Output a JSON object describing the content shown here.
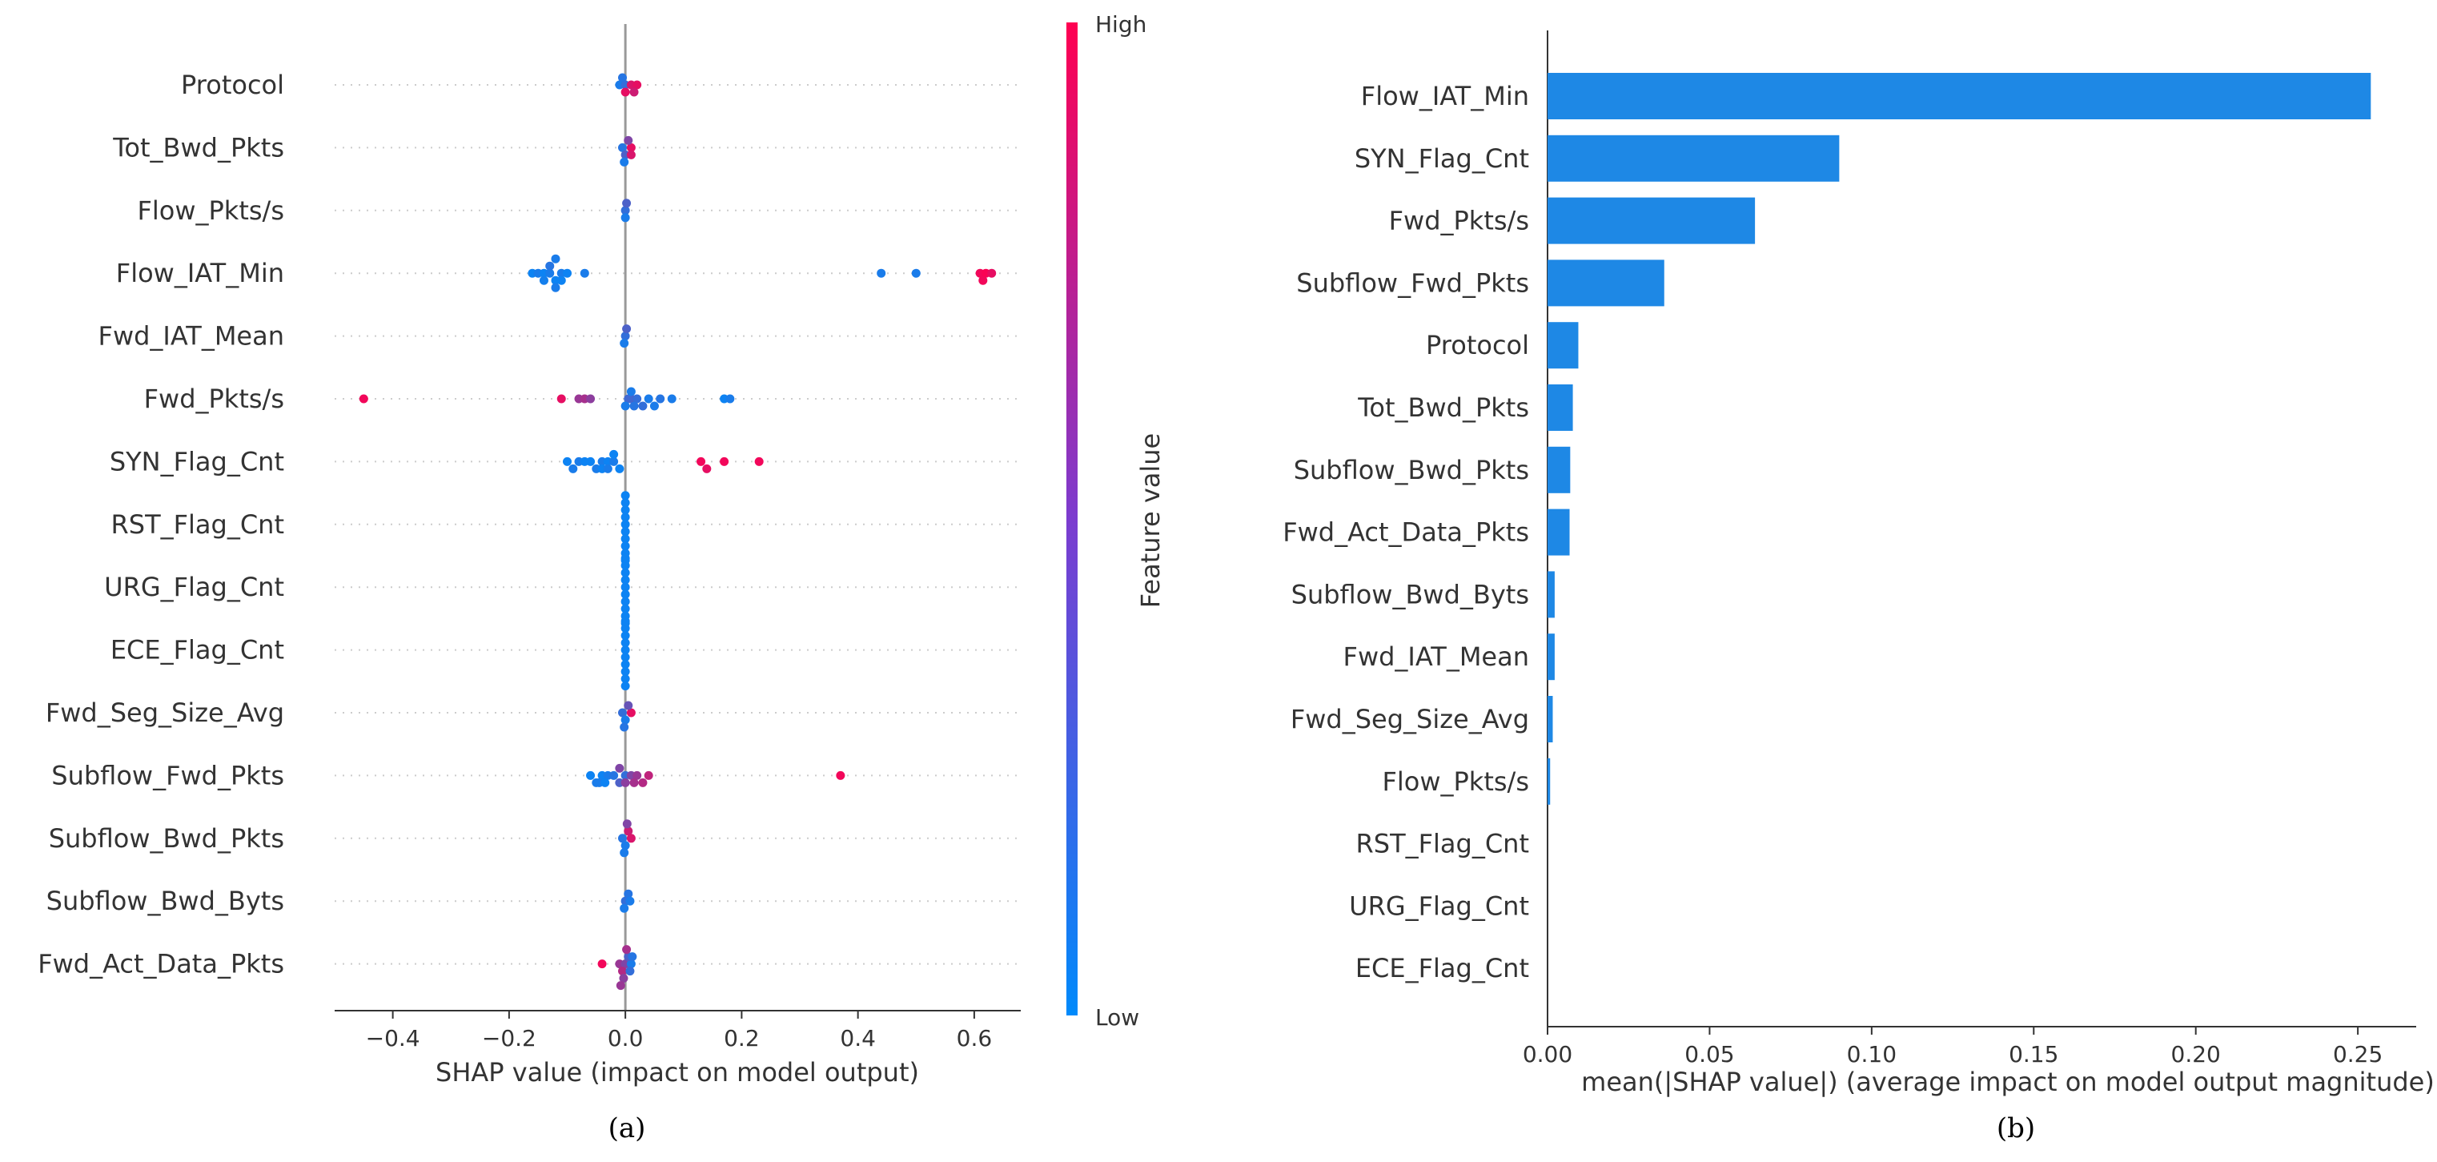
{
  "colors": {
    "low": "#008afb",
    "high": "#ff0051",
    "bar": "#1e88e5",
    "axis": "#333333",
    "grid": "#cccccc",
    "zero_line": "#999999"
  },
  "chart_data": [
    {
      "type": "scatter",
      "subtype": "shap-beeswarm",
      "caption": "(a)",
      "xlabel": "SHAP value (impact on model output)",
      "xticks": [
        -0.4,
        -0.2,
        0.0,
        0.2,
        0.4,
        0.6
      ],
      "xtick_labels": [
        "−0.4",
        "−0.2",
        "0.0",
        "0.2",
        "0.4",
        "0.6"
      ],
      "xlim": [
        -0.5,
        0.68
      ],
      "colorbar": {
        "title": "Feature value",
        "high_label": "High",
        "low_label": "Low"
      },
      "features": [
        {
          "name": "Protocol",
          "points": [
            [
              -0.01,
              0.1
            ],
            [
              0.0,
              0.2
            ],
            [
              0.01,
              0.85
            ],
            [
              0.02,
              0.9
            ],
            [
              0.0,
              0.9
            ],
            [
              -0.005,
              0.15
            ],
            [
              0.015,
              0.8
            ]
          ]
        },
        {
          "name": "Tot_Bwd_Pkts",
          "points": [
            [
              -0.005,
              0.15
            ],
            [
              0.0,
              0.3
            ],
            [
              0.01,
              0.9
            ],
            [
              0.005,
              0.5
            ],
            [
              0.01,
              0.85
            ],
            [
              -0.002,
              0.1
            ]
          ]
        },
        {
          "name": "Flow_Pkts/s",
          "points": [
            [
              0.0,
              0.2
            ],
            [
              0.0,
              0.1
            ],
            [
              0.002,
              0.3
            ]
          ]
        },
        {
          "name": "Flow_IAT_Min",
          "points": [
            [
              -0.16,
              0.05
            ],
            [
              -0.15,
              0.1
            ],
            [
              -0.14,
              0.05
            ],
            [
              -0.13,
              0.1
            ],
            [
              -0.12,
              0.05
            ],
            [
              -0.11,
              0.1
            ],
            [
              -0.1,
              0.05
            ],
            [
              -0.13,
              0.15
            ],
            [
              -0.12,
              0.1
            ],
            [
              -0.11,
              0.05
            ],
            [
              -0.07,
              0.1
            ],
            [
              -0.12,
              0.1
            ],
            [
              -0.14,
              0.08
            ],
            [
              0.44,
              0.1
            ],
            [
              0.5,
              0.1
            ],
            [
              0.61,
              0.95
            ],
            [
              0.62,
              0.98
            ],
            [
              0.63,
              0.9
            ],
            [
              0.615,
              0.95
            ]
          ]
        },
        {
          "name": "Fwd_IAT_Mean",
          "points": [
            [
              0.0,
              0.2
            ],
            [
              -0.002,
              0.1
            ],
            [
              0.002,
              0.3
            ]
          ]
        },
        {
          "name": "Fwd_Pkts/s",
          "points": [
            [
              -0.45,
              0.95
            ],
            [
              -0.11,
              0.9
            ],
            [
              -0.08,
              0.6
            ],
            [
              -0.07,
              0.65
            ],
            [
              -0.06,
              0.55
            ],
            [
              0.01,
              0.3
            ],
            [
              0.02,
              0.2
            ],
            [
              0.04,
              0.1
            ],
            [
              0.06,
              0.15
            ],
            [
              0.08,
              0.1
            ],
            [
              0.17,
              0.05
            ],
            [
              0.18,
              0.1
            ],
            [
              0.005,
              0.25
            ],
            [
              0.015,
              0.15
            ],
            [
              0.0,
              0.1
            ],
            [
              0.01,
              0.1
            ],
            [
              0.03,
              0.2
            ],
            [
              0.05,
              0.1
            ]
          ]
        },
        {
          "name": "SYN_Flag_Cnt",
          "points": [
            [
              -0.1,
              0.05
            ],
            [
              -0.08,
              0.1
            ],
            [
              -0.06,
              0.05
            ],
            [
              -0.04,
              0.1
            ],
            [
              -0.03,
              0.05
            ],
            [
              -0.02,
              0.1
            ],
            [
              -0.01,
              0.05
            ],
            [
              -0.05,
              0.1
            ],
            [
              -0.04,
              0.05
            ],
            [
              -0.03,
              0.1
            ],
            [
              -0.02,
              0.05
            ],
            [
              -0.09,
              0.1
            ],
            [
              -0.07,
              0.05
            ],
            [
              0.13,
              0.95
            ],
            [
              0.14,
              0.9
            ],
            [
              0.17,
              0.95
            ],
            [
              0.23,
              0.95
            ]
          ]
        },
        {
          "name": "RST_Flag_Cnt",
          "points": [
            [
              0.0,
              0.05
            ],
            [
              0.0,
              0.05
            ],
            [
              0.0,
              0.05
            ],
            [
              0.0,
              0.05
            ],
            [
              0.0,
              0.05
            ],
            [
              0.0,
              0.05
            ],
            [
              0.0,
              0.05
            ],
            [
              0.0,
              0.05
            ],
            [
              0.0,
              0.05
            ],
            [
              0.0,
              0.05
            ]
          ]
        },
        {
          "name": "URG_Flag_Cnt",
          "points": [
            [
              0.0,
              0.05
            ],
            [
              0.0,
              0.05
            ],
            [
              0.0,
              0.05
            ],
            [
              0.0,
              0.05
            ],
            [
              0.0,
              0.05
            ],
            [
              0.0,
              0.05
            ],
            [
              0.0,
              0.05
            ],
            [
              0.0,
              0.05
            ],
            [
              0.0,
              0.05
            ],
            [
              0.0,
              0.05
            ]
          ]
        },
        {
          "name": "ECE_Flag_Cnt",
          "points": [
            [
              0.0,
              0.05
            ],
            [
              0.0,
              0.05
            ],
            [
              0.0,
              0.05
            ],
            [
              0.0,
              0.05
            ],
            [
              0.0,
              0.05
            ],
            [
              0.0,
              0.05
            ],
            [
              0.0,
              0.05
            ],
            [
              0.0,
              0.05
            ],
            [
              0.0,
              0.05
            ],
            [
              0.0,
              0.05
            ]
          ]
        },
        {
          "name": "Fwd_Seg_Size_Avg",
          "points": [
            [
              -0.005,
              0.2
            ],
            [
              0.0,
              0.1
            ],
            [
              0.01,
              0.9
            ],
            [
              0.005,
              0.4
            ],
            [
              -0.002,
              0.15
            ]
          ]
        },
        {
          "name": "Subflow_Fwd_Pkts",
          "points": [
            [
              -0.06,
              0.05
            ],
            [
              -0.05,
              0.1
            ],
            [
              -0.04,
              0.05
            ],
            [
              -0.03,
              0.1
            ],
            [
              -0.02,
              0.15
            ],
            [
              -0.01,
              0.3
            ],
            [
              0.0,
              0.2
            ],
            [
              0.01,
              0.5
            ],
            [
              0.02,
              0.6
            ],
            [
              0.03,
              0.7
            ],
            [
              0.04,
              0.75
            ],
            [
              0.0,
              0.55
            ],
            [
              -0.01,
              0.5
            ],
            [
              -0.045,
              0.1
            ],
            [
              -0.035,
              0.05
            ],
            [
              0.015,
              0.65
            ],
            [
              0.37,
              0.95
            ]
          ]
        },
        {
          "name": "Subflow_Bwd_Pkts",
          "points": [
            [
              -0.005,
              0.15
            ],
            [
              0.0,
              0.1
            ],
            [
              0.005,
              0.8
            ],
            [
              0.01,
              0.85
            ],
            [
              -0.002,
              0.1
            ],
            [
              0.003,
              0.5
            ]
          ]
        },
        {
          "name": "Subflow_Bwd_Byts",
          "points": [
            [
              0.0,
              0.2
            ],
            [
              -0.002,
              0.1
            ],
            [
              0.005,
              0.15
            ],
            [
              0.008,
              0.1
            ]
          ]
        },
        {
          "name": "Fwd_Act_Data_Pkts",
          "points": [
            [
              -0.04,
              0.95
            ],
            [
              -0.01,
              0.6
            ],
            [
              0.0,
              0.5
            ],
            [
              0.01,
              0.1
            ],
            [
              -0.005,
              0.7
            ],
            [
              0.005,
              0.3
            ],
            [
              -0.003,
              0.55
            ],
            [
              0.002,
              0.65
            ],
            [
              0.008,
              0.2
            ],
            [
              -0.008,
              0.6
            ],
            [
              0.012,
              0.15
            ]
          ]
        }
      ]
    },
    {
      "type": "bar",
      "orientation": "horizontal",
      "caption": "(b)",
      "xlabel": "mean(|SHAP value|) (average impact on model output magnitude)",
      "xticks": [
        0.0,
        0.05,
        0.1,
        0.15,
        0.2,
        0.25
      ],
      "xtick_labels": [
        "0.00",
        "0.05",
        "0.10",
        "0.15",
        "0.20",
        "0.25"
      ],
      "xlim": [
        0.0,
        0.268
      ],
      "categories": [
        "Flow_IAT_Min",
        "SYN_Flag_Cnt",
        "Fwd_Pkts/s",
        "Subflow_Fwd_Pkts",
        "Protocol",
        "Tot_Bwd_Pkts",
        "Subflow_Bwd_Pkts",
        "Fwd_Act_Data_Pkts",
        "Subflow_Bwd_Byts",
        "Fwd_IAT_Mean",
        "Fwd_Seg_Size_Avg",
        "Flow_Pkts/s",
        "RST_Flag_Cnt",
        "URG_Flag_Cnt",
        "ECE_Flag_Cnt"
      ],
      "values": [
        0.254,
        0.09,
        0.064,
        0.036,
        0.0095,
        0.0078,
        0.007,
        0.0068,
        0.0022,
        0.0022,
        0.0016,
        0.0008,
        0.0,
        0.0,
        0.0
      ]
    }
  ]
}
